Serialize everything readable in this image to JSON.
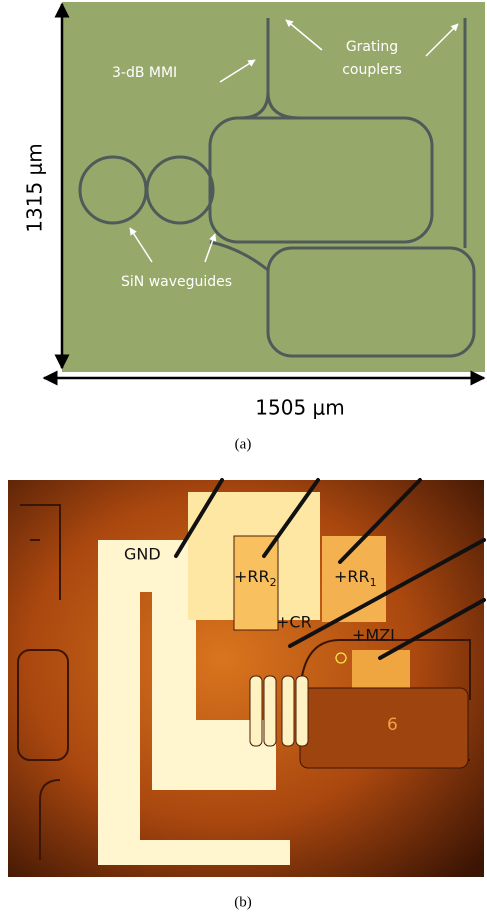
{
  "panel_a": {
    "labels": {
      "mmi": "3-dB MMI",
      "grating": "Grating",
      "couplers": "couplers",
      "sin": "SiN waveguides"
    },
    "height_label": "1315 μm",
    "width_label": "1505 μm",
    "caption": "(a)"
  },
  "panel_b": {
    "labels": {
      "gnd": "GND",
      "rr2": "+RR",
      "rr2_sub": "2",
      "rr1": "+RR",
      "rr1_sub": "1",
      "cr": "+CR",
      "mzi": "+MZI",
      "digit": "6"
    },
    "caption": "(b)"
  }
}
